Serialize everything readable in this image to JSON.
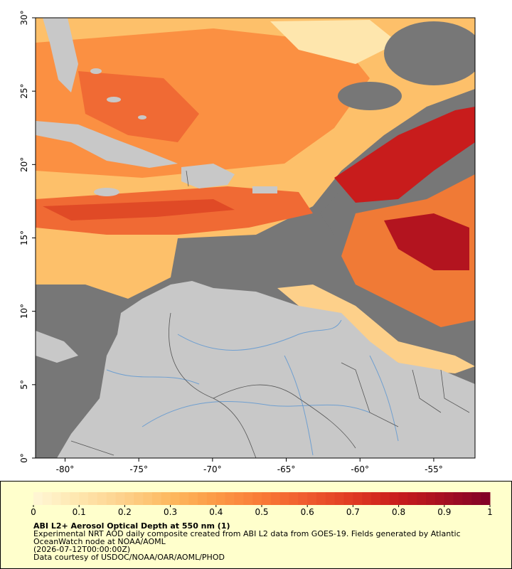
{
  "chart_data": {
    "type": "map",
    "xlim": [
      -82,
      -52.2
    ],
    "ylim": [
      0,
      30
    ],
    "xticks": [
      {
        "value": -80,
        "label": "-80°"
      },
      {
        "value": -75,
        "label": "-75°"
      },
      {
        "value": -70,
        "label": "-70°"
      },
      {
        "value": -65,
        "label": "-65°"
      },
      {
        "value": -60,
        "label": "-60°"
      },
      {
        "value": -55,
        "label": "-55°"
      }
    ],
    "yticks": [
      {
        "value": 0,
        "label": "0°"
      },
      {
        "value": 5,
        "label": "5°"
      },
      {
        "value": 10,
        "label": "10°"
      },
      {
        "value": 15,
        "label": "15°"
      },
      {
        "value": 20,
        "label": "20°"
      },
      {
        "value": 25,
        "label": "25°"
      },
      {
        "value": 30,
        "label": "30°"
      }
    ],
    "colorbar": {
      "lim": [
        0,
        1
      ],
      "ticks": [
        0,
        0.1,
        0.2,
        0.3,
        0.4,
        0.5,
        0.6,
        0.7,
        0.8,
        0.9,
        1
      ],
      "colors": [
        "#fff7d6",
        "#fee6ad",
        "#fdd08a",
        "#fdb95f",
        "#fc9a45",
        "#f97a36",
        "#ef5a2e",
        "#df3a22",
        "#c81c1c",
        "#a50f22",
        "#800026"
      ]
    },
    "title": "ABI L2+ Aerosol Optical Depth at 550 nm (1)",
    "notes": [
      "Experimental NRT AOD daily composite created from ABI L2 data from GOES-19. Fields generated by Atlantic",
      "OceanWatch node at NOAA/AOML",
      "(2026-07-12T00:00:00Z)",
      "Data courtesy of USDOC/NOAA/OAR/AOML/PHOD"
    ]
  }
}
